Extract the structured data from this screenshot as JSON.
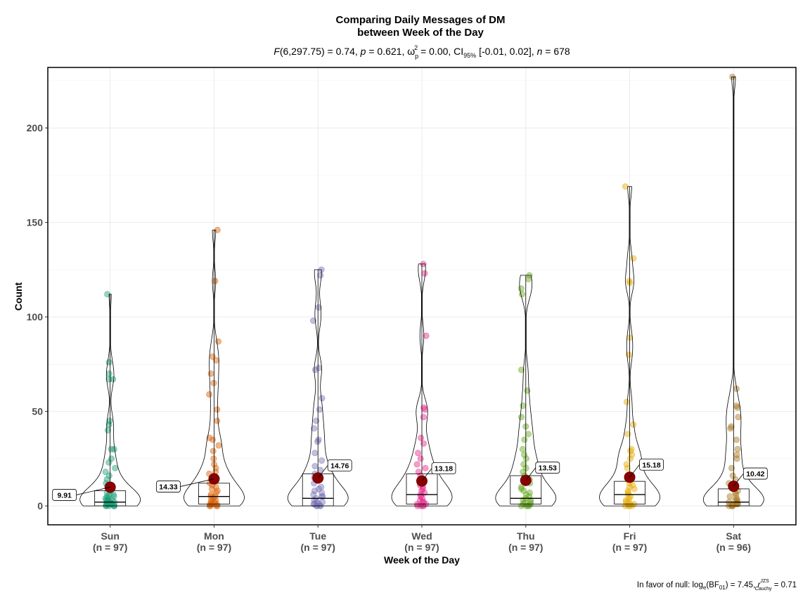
{
  "chart_data": {
    "type": "box-violin-scatter",
    "title_line1": "Comparing Daily Messages of DM",
    "title_line2": "between Week of the Day",
    "subtitle": {
      "f_label": "F",
      "f_df": "(6,297.75) = 0.74, ",
      "p_label": "p",
      "p_value": " = 0.621, ω",
      "omega_sub": "p",
      "omega_sup": "2",
      "omega_value": " = 0.00, CI",
      "ci_sub": "95%",
      "ci_value": " [-0.01, 0.02], ",
      "n_label": "n",
      "n_value": " = 678"
    },
    "xlabel": "Week of the Day",
    "ylabel": "Count",
    "ylim": [
      -10,
      232
    ],
    "yticks": [
      0,
      50,
      100,
      150,
      200
    ],
    "grid": true,
    "caption": {
      "prefix": "In favor of null: log",
      "log_sub": "e",
      "bf": "(BF",
      "bf_sub": "01",
      "mid": ") = 7.45, ",
      "r": "r",
      "r_sup": "JZS",
      "r_sub": "Cauchy",
      "suffix": " = 0.71"
    },
    "categories": [
      {
        "name": "Sun",
        "n_label": "(n = 97)",
        "color": "#1b9e77",
        "mean": 9.91,
        "mean_label": "9.91",
        "label_side": "left",
        "box": [
          0,
          2,
          8
        ],
        "max": 112,
        "points": [
          0,
          0,
          0,
          0,
          0,
          0,
          1,
          1,
          1,
          1,
          1,
          2,
          2,
          2,
          2,
          3,
          3,
          3,
          3,
          4,
          4,
          5,
          5,
          6,
          6,
          7,
          8,
          9,
          10,
          11,
          12,
          14,
          16,
          18,
          20,
          23,
          25,
          30,
          30,
          40,
          43,
          45,
          67,
          67,
          70,
          76,
          112
        ]
      },
      {
        "name": "Mon",
        "n_label": "(n = 97)",
        "color": "#d95f02",
        "mean": 14.33,
        "mean_label": "14.33",
        "label_side": "left",
        "box": [
          1,
          5,
          12
        ],
        "max": 146,
        "points": [
          0,
          0,
          0,
          0,
          1,
          1,
          1,
          2,
          2,
          3,
          3,
          4,
          5,
          5,
          6,
          7,
          8,
          9,
          10,
          11,
          12,
          14,
          15,
          17,
          18,
          20,
          22,
          25,
          29,
          32,
          35,
          36,
          45,
          51,
          59,
          65,
          70,
          77,
          79,
          87,
          119,
          146
        ]
      },
      {
        "name": "Tue",
        "n_label": "(n = 97)",
        "color": "#7570b3",
        "mean": 14.76,
        "mean_label": "14.76",
        "label_side": "right",
        "box": [
          0,
          4,
          17
        ],
        "max": 125,
        "points": [
          0,
          0,
          0,
          0,
          1,
          1,
          1,
          2,
          2,
          3,
          4,
          5,
          5,
          6,
          7,
          8,
          9,
          10,
          12,
          14,
          15,
          17,
          19,
          21,
          24,
          28,
          34,
          35,
          41,
          45,
          51,
          57,
          72,
          73,
          98,
          105,
          122,
          125
        ]
      },
      {
        "name": "Wed",
        "n_label": "(n = 97)",
        "color": "#e7298a",
        "mean": 13.18,
        "mean_label": "13.18",
        "label_side": "right",
        "box": [
          1,
          6,
          17
        ],
        "max": 128,
        "points": [
          0,
          0,
          0,
          0,
          1,
          1,
          2,
          2,
          3,
          4,
          5,
          6,
          7,
          8,
          9,
          10,
          11,
          12,
          14,
          16,
          18,
          20,
          22,
          25,
          28,
          33,
          36,
          47,
          51,
          52,
          90,
          123,
          128
        ]
      },
      {
        "name": "Thu",
        "n_label": "(n = 97)",
        "color": "#66a61e",
        "mean": 13.53,
        "mean_label": "13.53",
        "label_side": "right",
        "box": [
          1,
          4,
          16
        ],
        "max": 122,
        "points": [
          0,
          0,
          0,
          0,
          1,
          1,
          2,
          2,
          3,
          3,
          4,
          5,
          6,
          7,
          8,
          9,
          10,
          12,
          14,
          16,
          18,
          20,
          22,
          25,
          27,
          30,
          35,
          38,
          42,
          47,
          53,
          61,
          72,
          112,
          115,
          120,
          122
        ]
      },
      {
        "name": "Fri",
        "n_label": "(n = 97)",
        "color": "#e6ab02",
        "mean": 15.18,
        "mean_label": "15.18",
        "label_side": "right",
        "box": [
          1,
          6,
          13
        ],
        "max": 169,
        "points": [
          0,
          0,
          0,
          0,
          1,
          1,
          2,
          2,
          3,
          4,
          5,
          6,
          7,
          8,
          9,
          10,
          11,
          12,
          14,
          16,
          20,
          22,
          25,
          27,
          29,
          30,
          38,
          43,
          55,
          80,
          89,
          118,
          119,
          131,
          169
        ]
      },
      {
        "name": "Sat",
        "n_label": "(n = 96)",
        "color": "#a6761d",
        "mean": 10.42,
        "mean_label": "10.42",
        "label_side": "right",
        "box": [
          0,
          2,
          9
        ],
        "max": 227,
        "points": [
          0,
          0,
          0,
          0,
          1,
          1,
          1,
          2,
          2,
          3,
          3,
          4,
          5,
          6,
          7,
          8,
          10,
          12,
          14,
          16,
          20,
          25,
          27,
          30,
          35,
          41,
          42,
          47,
          52,
          53,
          62,
          227
        ]
      }
    ]
  }
}
